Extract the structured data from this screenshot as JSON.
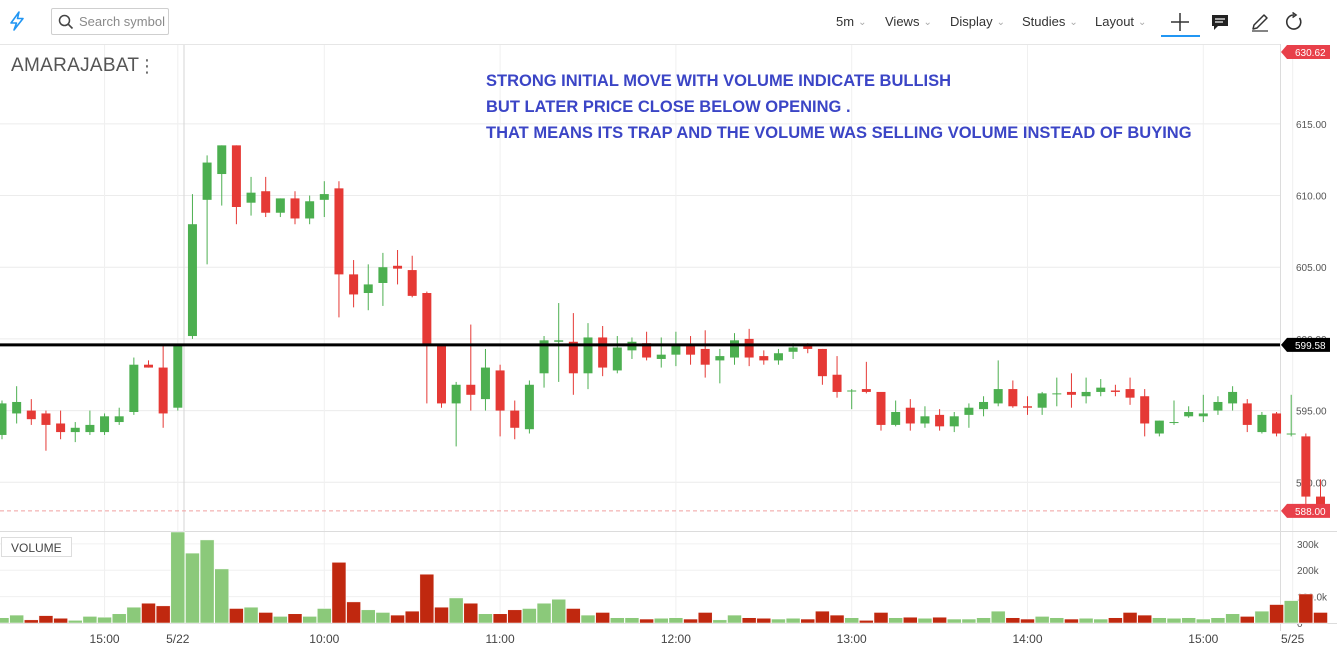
{
  "toolbar": {
    "logo_icon": "lightning-bolt-icon",
    "search_placeholder": "Search symbol",
    "interval": "5m",
    "views": "Views",
    "display": "Display",
    "studies": "Studies",
    "layout": "Layout",
    "tools": [
      "crosshair-icon",
      "comment-icon",
      "pencil-icon",
      "refresh-icon"
    ]
  },
  "symbol": "AMARAJABAT",
  "annotation": [
    "STRONG INITIAL MOVE WITH VOLUME INDICATE BULLISH",
    "BUT LATER PRICE CLOSE BELOW OPENING .",
    "THAT MEANS ITS TRAP AND THE VOLUME WAS SELLING VOLUME INSTEAD OF BUYING"
  ],
  "volume_label": "VOLUME",
  "colors": {
    "up": "#4caf50",
    "down": "#e53935",
    "vol_up": "#8bc97a",
    "vol_down": "#c0280f",
    "annotation": "#3b45c6",
    "hline": "#000000",
    "last_price": "#e8404a"
  },
  "chart_data": {
    "type": "candlestick",
    "price_axis": {
      "ticks": [
        "615.00",
        "610.00",
        "605.00",
        "600.00",
        "595.00",
        "590.00"
      ],
      "range": [
        586.6,
        620.5
      ]
    },
    "volume_axis": {
      "ticks": [
        "300k",
        "200k",
        "100.0k",
        "0"
      ],
      "range": [
        0,
        345000
      ]
    },
    "time_axis": [
      "15:00",
      "5/22",
      "10:00",
      "11:00",
      "12:00",
      "13:00",
      "14:00",
      "15:00",
      "5/25"
    ],
    "horizontal_line": "599.58",
    "last_price": "588.00",
    "top_price": "630.62",
    "candles": [
      {
        "o": 593.3,
        "h": 595.7,
        "l": 593.0,
        "c": 595.5,
        "v": 20000
      },
      {
        "o": 594.8,
        "h": 596.7,
        "l": 594.1,
        "c": 595.6,
        "v": 30000
      },
      {
        "o": 595.0,
        "h": 595.8,
        "l": 594.0,
        "c": 594.4,
        "v": 12000
      },
      {
        "o": 594.8,
        "h": 595.0,
        "l": 592.2,
        "c": 594.0,
        "v": 28000
      },
      {
        "o": 594.1,
        "h": 595.0,
        "l": 593.0,
        "c": 593.5,
        "v": 18000
      },
      {
        "o": 593.5,
        "h": 594.2,
        "l": 592.8,
        "c": 593.8,
        "v": 10000
      },
      {
        "o": 593.5,
        "h": 595.0,
        "l": 593.3,
        "c": 594.0,
        "v": 25000
      },
      {
        "o": 593.5,
        "h": 594.8,
        "l": 593.3,
        "c": 594.6,
        "v": 22000
      },
      {
        "o": 594.2,
        "h": 595.2,
        "l": 594.0,
        "c": 594.6,
        "v": 35000
      },
      {
        "o": 594.9,
        "h": 598.7,
        "l": 594.7,
        "c": 598.2,
        "v": 60000
      },
      {
        "o": 598.2,
        "h": 598.5,
        "l": 598.0,
        "c": 598.0,
        "v": 75000
      },
      {
        "o": 598.0,
        "h": 599.6,
        "l": 593.8,
        "c": 594.8,
        "v": 65000
      },
      {
        "o": 595.2,
        "h": 599.6,
        "l": 595.0,
        "c": 599.6,
        "v": 345000
      },
      {
        "o": 600.2,
        "h": 610.1,
        "l": 600.0,
        "c": 608.0,
        "v": 265000
      },
      {
        "o": 609.7,
        "h": 612.8,
        "l": 605.2,
        "c": 612.3,
        "v": 315000
      },
      {
        "o": 611.5,
        "h": 613.5,
        "l": 609.3,
        "c": 613.5,
        "v": 205000
      },
      {
        "o": 613.5,
        "h": 613.5,
        "l": 608.0,
        "c": 609.2,
        "v": 55000
      },
      {
        "o": 609.5,
        "h": 611.3,
        "l": 608.6,
        "c": 610.2,
        "v": 60000
      },
      {
        "o": 610.3,
        "h": 611.3,
        "l": 608.5,
        "c": 608.8,
        "v": 40000
      },
      {
        "o": 608.8,
        "h": 609.8,
        "l": 608.5,
        "c": 609.8,
        "v": 25000
      },
      {
        "o": 609.8,
        "h": 610.3,
        "l": 608.0,
        "c": 608.4,
        "v": 35000
      },
      {
        "o": 608.4,
        "h": 610.0,
        "l": 608.0,
        "c": 609.6,
        "v": 25000
      },
      {
        "o": 609.7,
        "h": 611.0,
        "l": 608.5,
        "c": 610.1,
        "v": 55000
      },
      {
        "o": 610.5,
        "h": 611.0,
        "l": 601.5,
        "c": 604.5,
        "v": 230000
      },
      {
        "o": 604.5,
        "h": 605.5,
        "l": 602.2,
        "c": 603.1,
        "v": 80000
      },
      {
        "o": 603.2,
        "h": 605.2,
        "l": 602.0,
        "c": 603.8,
        "v": 50000
      },
      {
        "o": 603.9,
        "h": 606.0,
        "l": 602.3,
        "c": 605.0,
        "v": 40000
      },
      {
        "o": 605.1,
        "h": 606.2,
        "l": 603.8,
        "c": 604.9,
        "v": 30000
      },
      {
        "o": 604.8,
        "h": 605.8,
        "l": 602.9,
        "c": 603.0,
        "v": 45000
      },
      {
        "o": 603.2,
        "h": 603.3,
        "l": 595.5,
        "c": 599.5,
        "v": 185000
      },
      {
        "o": 599.5,
        "h": 599.5,
        "l": 595.2,
        "c": 595.5,
        "v": 60000
      },
      {
        "o": 595.5,
        "h": 597.0,
        "l": 592.5,
        "c": 596.8,
        "v": 95000
      },
      {
        "o": 596.8,
        "h": 601.0,
        "l": 595.0,
        "c": 596.1,
        "v": 75000
      },
      {
        "o": 595.8,
        "h": 599.3,
        "l": 595.0,
        "c": 598.0,
        "v": 35000
      },
      {
        "o": 597.8,
        "h": 598.2,
        "l": 593.2,
        "c": 595.0,
        "v": 35000
      },
      {
        "o": 595.0,
        "h": 595.7,
        "l": 593.0,
        "c": 593.8,
        "v": 50000
      },
      {
        "o": 593.7,
        "h": 597.1,
        "l": 593.4,
        "c": 596.8,
        "v": 55000
      },
      {
        "o": 597.6,
        "h": 600.2,
        "l": 596.6,
        "c": 599.9,
        "v": 75000
      },
      {
        "o": 599.8,
        "h": 602.5,
        "l": 597.0,
        "c": 599.9,
        "v": 90000
      },
      {
        "o": 599.8,
        "h": 601.8,
        "l": 596.1,
        "c": 597.6,
        "v": 55000
      },
      {
        "o": 597.6,
        "h": 601.1,
        "l": 596.5,
        "c": 600.1,
        "v": 30000
      },
      {
        "o": 600.1,
        "h": 600.9,
        "l": 597.4,
        "c": 598.0,
        "v": 40000
      },
      {
        "o": 597.8,
        "h": 600.2,
        "l": 597.6,
        "c": 599.4,
        "v": 20000
      },
      {
        "o": 599.2,
        "h": 600.1,
        "l": 598.6,
        "c": 599.8,
        "v": 20000
      },
      {
        "o": 599.7,
        "h": 600.5,
        "l": 598.5,
        "c": 598.7,
        "v": 15000
      },
      {
        "o": 598.6,
        "h": 600.1,
        "l": 598.0,
        "c": 598.9,
        "v": 18000
      },
      {
        "o": 598.9,
        "h": 600.5,
        "l": 598.1,
        "c": 599.6,
        "v": 20000
      },
      {
        "o": 599.5,
        "h": 600.2,
        "l": 598.2,
        "c": 598.9,
        "v": 15000
      },
      {
        "o": 599.3,
        "h": 600.6,
        "l": 597.3,
        "c": 598.2,
        "v": 40000
      },
      {
        "o": 598.5,
        "h": 599.3,
        "l": 596.9,
        "c": 598.8,
        "v": 12000
      },
      {
        "o": 598.7,
        "h": 600.4,
        "l": 598.2,
        "c": 599.9,
        "v": 30000
      },
      {
        "o": 600.0,
        "h": 600.7,
        "l": 598.1,
        "c": 598.7,
        "v": 20000
      },
      {
        "o": 598.8,
        "h": 599.2,
        "l": 598.2,
        "c": 598.5,
        "v": 18000
      },
      {
        "o": 598.5,
        "h": 599.3,
        "l": 598.2,
        "c": 599.0,
        "v": 15000
      },
      {
        "o": 599.1,
        "h": 599.7,
        "l": 598.6,
        "c": 599.4,
        "v": 18000
      },
      {
        "o": 599.5,
        "h": 599.7,
        "l": 599.0,
        "c": 599.3,
        "v": 15000
      },
      {
        "o": 599.3,
        "h": 599.3,
        "l": 596.8,
        "c": 597.4,
        "v": 45000
      },
      {
        "o": 597.5,
        "h": 598.8,
        "l": 595.9,
        "c": 596.3,
        "v": 30000
      },
      {
        "o": 596.4,
        "h": 596.5,
        "l": 595.1,
        "c": 596.4,
        "v": 20000
      },
      {
        "o": 596.5,
        "h": 598.4,
        "l": 596.2,
        "c": 596.3,
        "v": 10000
      },
      {
        "o": 596.3,
        "h": 596.3,
        "l": 593.6,
        "c": 594.0,
        "v": 40000
      },
      {
        "o": 594.0,
        "h": 595.7,
        "l": 593.9,
        "c": 594.9,
        "v": 20000
      },
      {
        "o": 595.2,
        "h": 595.8,
        "l": 593.6,
        "c": 594.1,
        "v": 22000
      },
      {
        "o": 594.1,
        "h": 595.3,
        "l": 593.8,
        "c": 594.6,
        "v": 18000
      },
      {
        "o": 594.7,
        "h": 595.1,
        "l": 593.6,
        "c": 593.9,
        "v": 22000
      },
      {
        "o": 593.9,
        "h": 594.9,
        "l": 593.5,
        "c": 594.6,
        "v": 15000
      },
      {
        "o": 594.7,
        "h": 595.5,
        "l": 593.8,
        "c": 595.2,
        "v": 15000
      },
      {
        "o": 595.1,
        "h": 596.0,
        "l": 594.6,
        "c": 595.6,
        "v": 20000
      },
      {
        "o": 595.5,
        "h": 598.5,
        "l": 595.3,
        "c": 596.5,
        "v": 45000
      },
      {
        "o": 596.5,
        "h": 597.1,
        "l": 595.2,
        "c": 595.3,
        "v": 20000
      },
      {
        "o": 595.3,
        "h": 596.0,
        "l": 594.7,
        "c": 595.2,
        "v": 15000
      },
      {
        "o": 595.2,
        "h": 596.3,
        "l": 594.7,
        "c": 596.2,
        "v": 25000
      },
      {
        "o": 596.2,
        "h": 597.3,
        "l": 595.3,
        "c": 596.2,
        "v": 20000
      },
      {
        "o": 596.3,
        "h": 597.6,
        "l": 595.2,
        "c": 596.1,
        "v": 15000
      },
      {
        "o": 596.0,
        "h": 597.3,
        "l": 595.5,
        "c": 596.3,
        "v": 18000
      },
      {
        "o": 596.3,
        "h": 597.2,
        "l": 596.0,
        "c": 596.6,
        "v": 15000
      },
      {
        "o": 596.4,
        "h": 596.8,
        "l": 596.0,
        "c": 596.3,
        "v": 20000
      },
      {
        "o": 596.5,
        "h": 597.3,
        "l": 595.4,
        "c": 595.9,
        "v": 40000
      },
      {
        "o": 596.0,
        "h": 596.5,
        "l": 593.2,
        "c": 594.1,
        "v": 30000
      },
      {
        "o": 593.4,
        "h": 594.3,
        "l": 593.2,
        "c": 594.3,
        "v": 20000
      },
      {
        "o": 594.2,
        "h": 595.7,
        "l": 594.0,
        "c": 594.2,
        "v": 18000
      },
      {
        "o": 594.6,
        "h": 595.3,
        "l": 594.5,
        "c": 594.9,
        "v": 20000
      },
      {
        "o": 594.6,
        "h": 596.1,
        "l": 594.2,
        "c": 594.8,
        "v": 15000
      },
      {
        "o": 595.0,
        "h": 596.0,
        "l": 594.7,
        "c": 595.6,
        "v": 20000
      },
      {
        "o": 595.5,
        "h": 596.7,
        "l": 595.0,
        "c": 596.3,
        "v": 35000
      },
      {
        "o": 595.5,
        "h": 595.8,
        "l": 593.5,
        "c": 594.0,
        "v": 25000
      },
      {
        "o": 593.5,
        "h": 594.9,
        "l": 593.4,
        "c": 594.7,
        "v": 45000
      },
      {
        "o": 594.8,
        "h": 594.9,
        "l": 593.2,
        "c": 593.4,
        "v": 70000
      },
      {
        "o": 593.4,
        "h": 596.1,
        "l": 593.2,
        "c": 593.4,
        "v": 85000
      },
      {
        "o": 593.2,
        "h": 593.4,
        "l": 587.6,
        "c": 589.0,
        "v": 110000
      },
      {
        "o": 589.0,
        "h": 590.2,
        "l": 588.0,
        "c": 588.0,
        "v": 40000
      }
    ]
  }
}
